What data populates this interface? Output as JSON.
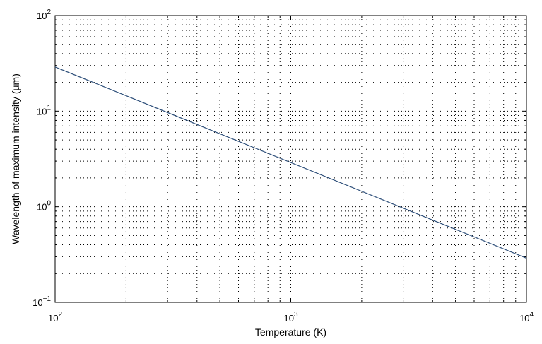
{
  "chart_data": {
    "type": "line",
    "xlabel": "Temperature (K)",
    "ylabel": "Wavelength of maximum intensity (μm)",
    "xscale": "log",
    "yscale": "log",
    "xlim": [
      100,
      10000
    ],
    "ylim": [
      0.1,
      100
    ],
    "grid": "on (major and minor, dotted)",
    "x_ticks": [
      {
        "value": 100,
        "base": "10",
        "exp": "2"
      },
      {
        "value": 1000,
        "base": "10",
        "exp": "3"
      },
      {
        "value": 10000,
        "base": "10",
        "exp": "4"
      }
    ],
    "y_ticks": [
      {
        "value": 0.1,
        "base": "10",
        "exp": "−1"
      },
      {
        "value": 1,
        "base": "10",
        "exp": "0"
      },
      {
        "value": 10,
        "base": "10",
        "exp": "1"
      },
      {
        "value": 100,
        "base": "10",
        "exp": "2"
      }
    ],
    "series": [
      {
        "color": "#2e4f7a",
        "x": [
          100,
          10000
        ],
        "y": [
          29,
          0.29
        ]
      }
    ]
  }
}
